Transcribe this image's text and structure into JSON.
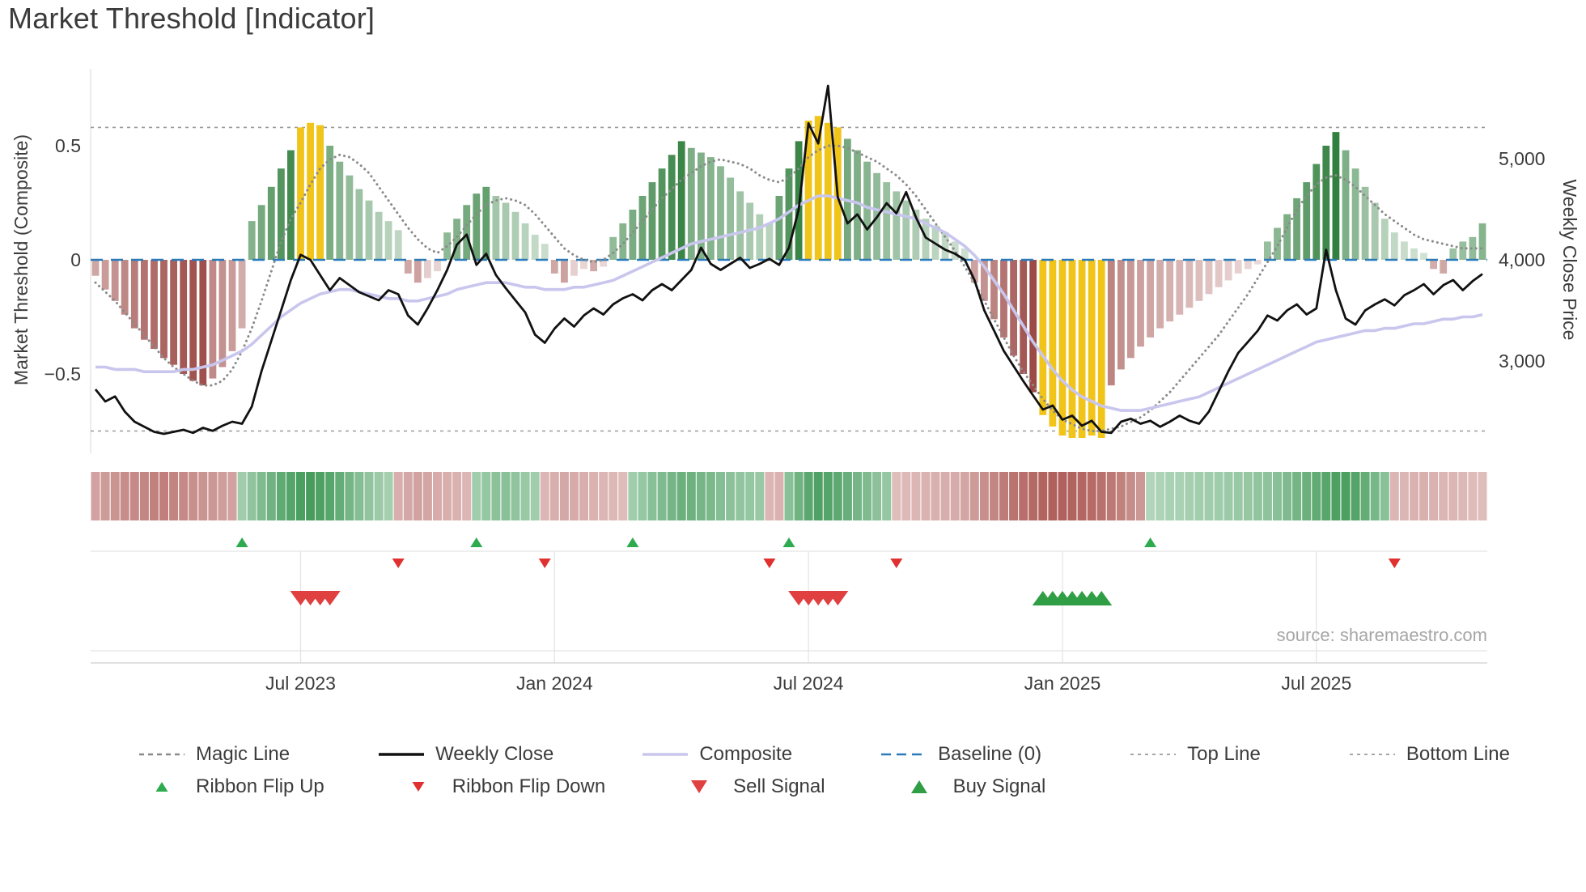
{
  "title": "Market Threshold [Indicator]",
  "source": "source: sharemaestro.com",
  "axes": {
    "left_label": "Market Threshold (Composite)",
    "right_label": "Weekly Close Price",
    "left_ticks": [
      {
        "v": 0.5,
        "label": "0.5"
      },
      {
        "v": 0.0,
        "label": "0"
      },
      {
        "v": -0.5,
        "label": "−0.5"
      }
    ],
    "right_ticks": [
      {
        "v": 5000,
        "label": "5,000"
      },
      {
        "v": 4000,
        "label": "4,000"
      },
      {
        "v": 3000,
        "label": "3,000"
      }
    ],
    "x_ticks": [
      {
        "week": 21,
        "label": "Jul 2023"
      },
      {
        "week": 47,
        "label": "Jan 2024"
      },
      {
        "week": 73,
        "label": "Jul 2024"
      },
      {
        "week": 99,
        "label": "Jan 2025"
      },
      {
        "week": 125,
        "label": "Jul 2025"
      }
    ]
  },
  "chart_data": {
    "type": "bar+line",
    "title": "Market Threshold [Indicator]",
    "frequency": "weekly",
    "start_date": "2023-02-06",
    "points": 143,
    "baseline": 0,
    "top_line": 0.58,
    "bottom_line": -0.75,
    "ylim_left": [
      -0.85,
      0.85
    ],
    "right_axis_price_ticks": [
      3000,
      4000,
      5000
    ],
    "series": {
      "threshold_bars": [
        -0.07,
        -0.13,
        -0.18,
        -0.24,
        -0.3,
        -0.35,
        -0.39,
        -0.43,
        -0.46,
        -0.5,
        -0.53,
        -0.55,
        -0.52,
        -0.47,
        -0.4,
        -0.3,
        0.17,
        0.24,
        0.32,
        0.4,
        0.48,
        0.58,
        0.6,
        0.59,
        0.5,
        0.43,
        0.37,
        0.31,
        0.26,
        0.21,
        0.17,
        0.13,
        -0.06,
        -0.1,
        -0.08,
        -0.05,
        0.12,
        0.18,
        0.24,
        0.29,
        0.32,
        0.28,
        0.25,
        0.21,
        0.16,
        0.11,
        0.07,
        -0.06,
        -0.1,
        -0.07,
        -0.04,
        -0.05,
        -0.03,
        0.1,
        0.16,
        0.22,
        0.28,
        0.34,
        0.4,
        0.46,
        0.52,
        0.49,
        0.47,
        0.45,
        0.41,
        0.36,
        0.3,
        0.25,
        0.2,
        0.16,
        0.28,
        0.4,
        0.52,
        0.61,
        0.63,
        0.6,
        0.58,
        0.53,
        0.48,
        0.43,
        0.38,
        0.34,
        0.3,
        0.26,
        0.22,
        0.18,
        0.15,
        0.12,
        0.08,
        0.05,
        -0.1,
        -0.18,
        -0.26,
        -0.34,
        -0.42,
        -0.5,
        -0.58,
        -0.68,
        -0.73,
        -0.77,
        -0.78,
        -0.78,
        -0.77,
        -0.78,
        -0.55,
        -0.48,
        -0.43,
        -0.38,
        -0.34,
        -0.3,
        -0.27,
        -0.24,
        -0.21,
        -0.18,
        -0.15,
        -0.12,
        -0.09,
        -0.06,
        -0.04,
        -0.02,
        0.08,
        0.14,
        0.2,
        0.27,
        0.34,
        0.42,
        0.5,
        0.56,
        0.48,
        0.4,
        0.32,
        0.25,
        0.18,
        0.12,
        0.08,
        0.05,
        0.03,
        -0.04,
        -0.06,
        0.05,
        0.08,
        0.1,
        0.16
      ],
      "weekly_close": [
        2720,
        2600,
        2650,
        2500,
        2400,
        2350,
        2300,
        2280,
        2300,
        2320,
        2290,
        2340,
        2310,
        2360,
        2400,
        2380,
        2550,
        2900,
        3200,
        3500,
        3800,
        4050,
        4000,
        3850,
        3700,
        3820,
        3750,
        3680,
        3640,
        3600,
        3700,
        3660,
        3450,
        3360,
        3520,
        3700,
        3900,
        4150,
        4250,
        3950,
        4060,
        3850,
        3720,
        3600,
        3480,
        3260,
        3180,
        3320,
        3420,
        3340,
        3450,
        3520,
        3460,
        3560,
        3620,
        3660,
        3600,
        3700,
        3760,
        3700,
        3800,
        3900,
        4120,
        3960,
        3900,
        3960,
        4020,
        3920,
        3960,
        4010,
        3950,
        4120,
        4500,
        5350,
        5150,
        5720,
        4620,
        4360,
        4450,
        4300,
        4420,
        4560,
        4460,
        4670,
        4420,
        4220,
        4160,
        4100,
        4060,
        4000,
        3800,
        3500,
        3300,
        3100,
        2950,
        2800,
        2660,
        2520,
        2560,
        2420,
        2460,
        2360,
        2410,
        2300,
        2290,
        2400,
        2430,
        2380,
        2410,
        2350,
        2400,
        2460,
        2410,
        2380,
        2500,
        2700,
        2900,
        3080,
        3190,
        3300,
        3450,
        3400,
        3500,
        3560,
        3460,
        3520,
        4100,
        3700,
        3420,
        3360,
        3500,
        3560,
        3610,
        3550,
        3650,
        3700,
        3760,
        3660,
        3750,
        3800,
        3700,
        3790,
        3860
      ],
      "magic_line": [
        -0.1,
        -0.14,
        -0.18,
        -0.23,
        -0.28,
        -0.33,
        -0.38,
        -0.43,
        -0.47,
        -0.5,
        -0.53,
        -0.55,
        -0.55,
        -0.53,
        -0.48,
        -0.4,
        -0.3,
        -0.18,
        -0.05,
        0.08,
        0.18,
        0.25,
        0.33,
        0.4,
        0.44,
        0.46,
        0.45,
        0.42,
        0.38,
        0.32,
        0.26,
        0.2,
        0.14,
        0.09,
        0.05,
        0.03,
        0.06,
        0.1,
        0.15,
        0.2,
        0.24,
        0.26,
        0.27,
        0.26,
        0.24,
        0.2,
        0.15,
        0.1,
        0.05,
        0.02,
        0.0,
        -0.01,
        0.0,
        0.03,
        0.07,
        0.12,
        0.17,
        0.22,
        0.27,
        0.31,
        0.35,
        0.38,
        0.41,
        0.43,
        0.44,
        0.43,
        0.42,
        0.4,
        0.37,
        0.35,
        0.34,
        0.36,
        0.4,
        0.45,
        0.48,
        0.5,
        0.5,
        0.49,
        0.47,
        0.45,
        0.43,
        0.4,
        0.37,
        0.33,
        0.28,
        0.22,
        0.16,
        0.1,
        0.04,
        -0.03,
        -0.1,
        -0.18,
        -0.26,
        -0.34,
        -0.42,
        -0.49,
        -0.55,
        -0.61,
        -0.66,
        -0.7,
        -0.72,
        -0.74,
        -0.75,
        -0.75,
        -0.74,
        -0.73,
        -0.71,
        -0.69,
        -0.66,
        -0.62,
        -0.58,
        -0.53,
        -0.48,
        -0.43,
        -0.38,
        -0.33,
        -0.27,
        -0.21,
        -0.15,
        -0.08,
        -0.01,
        0.06,
        0.14,
        0.22,
        0.28,
        0.33,
        0.36,
        0.37,
        0.35,
        0.32,
        0.28,
        0.24,
        0.2,
        0.17,
        0.14,
        0.11,
        0.09,
        0.08,
        0.07,
        0.06,
        0.05,
        0.05,
        0.05
      ],
      "composite": [
        -0.47,
        -0.47,
        -0.48,
        -0.48,
        -0.48,
        -0.49,
        -0.49,
        -0.49,
        -0.49,
        -0.48,
        -0.48,
        -0.47,
        -0.46,
        -0.44,
        -0.42,
        -0.4,
        -0.37,
        -0.33,
        -0.29,
        -0.25,
        -0.22,
        -0.19,
        -0.17,
        -0.15,
        -0.14,
        -0.13,
        -0.13,
        -0.14,
        -0.15,
        -0.16,
        -0.17,
        -0.17,
        -0.18,
        -0.18,
        -0.17,
        -0.16,
        -0.15,
        -0.13,
        -0.12,
        -0.11,
        -0.1,
        -0.1,
        -0.1,
        -0.11,
        -0.12,
        -0.12,
        -0.13,
        -0.13,
        -0.13,
        -0.12,
        -0.12,
        -0.11,
        -0.1,
        -0.09,
        -0.07,
        -0.05,
        -0.03,
        -0.01,
        0.01,
        0.03,
        0.05,
        0.07,
        0.08,
        0.09,
        0.1,
        0.11,
        0.12,
        0.13,
        0.14,
        0.16,
        0.18,
        0.21,
        0.24,
        0.26,
        0.28,
        0.28,
        0.27,
        0.26,
        0.25,
        0.23,
        0.22,
        0.21,
        0.2,
        0.19,
        0.18,
        0.16,
        0.14,
        0.12,
        0.09,
        0.06,
        0.02,
        -0.03,
        -0.09,
        -0.15,
        -0.22,
        -0.29,
        -0.36,
        -0.42,
        -0.48,
        -0.53,
        -0.57,
        -0.6,
        -0.62,
        -0.64,
        -0.65,
        -0.66,
        -0.66,
        -0.66,
        -0.65,
        -0.64,
        -0.63,
        -0.62,
        -0.61,
        -0.6,
        -0.58,
        -0.56,
        -0.54,
        -0.52,
        -0.5,
        -0.48,
        -0.46,
        -0.44,
        -0.42,
        -0.4,
        -0.38,
        -0.36,
        -0.35,
        -0.34,
        -0.33,
        -0.32,
        -0.31,
        -0.31,
        -0.3,
        -0.3,
        -0.29,
        -0.28,
        -0.28,
        -0.27,
        -0.26,
        -0.26,
        -0.25,
        -0.25,
        -0.24
      ],
      "ribbon": [
        -0.45,
        -0.5,
        -0.55,
        -0.6,
        -0.62,
        -0.65,
        -0.68,
        -0.7,
        -0.66,
        -0.62,
        -0.58,
        -0.55,
        -0.52,
        -0.48,
        -0.45,
        0.35,
        0.45,
        0.55,
        0.65,
        0.75,
        0.82,
        0.88,
        0.9,
        0.86,
        0.8,
        0.72,
        0.62,
        0.52,
        0.44,
        0.38,
        0.32,
        -0.35,
        -0.4,
        -0.45,
        -0.42,
        -0.38,
        -0.35,
        -0.32,
        -0.3,
        0.35,
        0.42,
        0.48,
        0.5,
        0.45,
        0.4,
        0.35,
        -0.3,
        -0.35,
        -0.4,
        -0.38,
        -0.35,
        -0.32,
        -0.3,
        -0.28,
        -0.26,
        0.35,
        0.42,
        0.5,
        0.56,
        0.62,
        0.68,
        0.66,
        0.62,
        0.58,
        0.52,
        0.48,
        0.44,
        0.42,
        0.4,
        -0.3,
        -0.32,
        0.5,
        0.65,
        0.78,
        0.85,
        0.82,
        0.76,
        0.7,
        0.62,
        0.55,
        0.48,
        0.42,
        -0.25,
        -0.27,
        -0.3,
        -0.32,
        -0.34,
        -0.36,
        -0.38,
        -0.42,
        -0.5,
        -0.58,
        -0.65,
        -0.72,
        -0.78,
        -0.82,
        -0.86,
        -0.9,
        -0.92,
        -0.92,
        -0.9,
        -0.88,
        -0.85,
        -0.8,
        -0.75,
        -0.68,
        -0.6,
        -0.52,
        0.25,
        0.27,
        0.3,
        0.3,
        0.32,
        0.34,
        0.35,
        0.36,
        0.38,
        0.4,
        0.42,
        0.44,
        0.46,
        0.5,
        0.56,
        0.62,
        0.68,
        0.74,
        0.8,
        0.86,
        0.88,
        0.82,
        0.72,
        0.6,
        0.5,
        -0.3,
        -0.3,
        -0.32,
        -0.34,
        -0.32,
        -0.3,
        -0.3,
        -0.28,
        -0.26,
        -0.25
      ]
    },
    "signals": {
      "ribbon_flip_up": [
        15,
        39,
        55,
        71,
        108
      ],
      "ribbon_flip_down": [
        31,
        46,
        69,
        82,
        133
      ],
      "sell": [
        21,
        22,
        23,
        24,
        72,
        73,
        74,
        75,
        76
      ],
      "buy": [
        97,
        98,
        99,
        100,
        101,
        102,
        103
      ]
    }
  },
  "colors": {
    "bar_up": "#2e7d3b",
    "bar_down": "#9c4a46",
    "bar_extreme": "#f0c419",
    "ribbon_up": "#2f9048",
    "ribbon_down": "#a84f4a",
    "weekly_close": "#111111",
    "magic_line": "#8a8a8a",
    "composite": "#c9c6ee",
    "baseline": "#2b7bba",
    "top_bottom": "#9a9a9a",
    "flip_up": "#2eab4e",
    "flip_down": "#e03131",
    "sell": "#e04040",
    "buy": "#2f9e44",
    "grid": "#e3e3e3"
  },
  "legend": {
    "row1": [
      {
        "label": "Magic Line",
        "swatch": "dashed",
        "color": "#8a8a8a"
      },
      {
        "label": "Weekly Close",
        "swatch": "solid",
        "color": "#111111"
      },
      {
        "label": "Composite",
        "swatch": "solid",
        "color": "#c9c6ee"
      },
      {
        "label": "Baseline (0)",
        "swatch": "dashed",
        "color": "#2b7bba"
      },
      {
        "label": "Top Line",
        "swatch": "dashed-thin",
        "color": "#9a9a9a"
      },
      {
        "label": "Bottom Line",
        "swatch": "dashed-thin",
        "color": "#9a9a9a"
      }
    ],
    "row2": [
      {
        "label": "Ribbon Flip Up",
        "swatch": "tri-up",
        "color": "#2eab4e",
        "size": 15
      },
      {
        "label": "Ribbon Flip Down",
        "swatch": "tri-down",
        "color": "#e03131",
        "size": 15
      },
      {
        "label": "Sell Signal",
        "swatch": "tri-down",
        "color": "#e04040",
        "size": 20
      },
      {
        "label": "Buy Signal",
        "swatch": "tri-up",
        "color": "#2f9e44",
        "size": 20
      }
    ]
  }
}
